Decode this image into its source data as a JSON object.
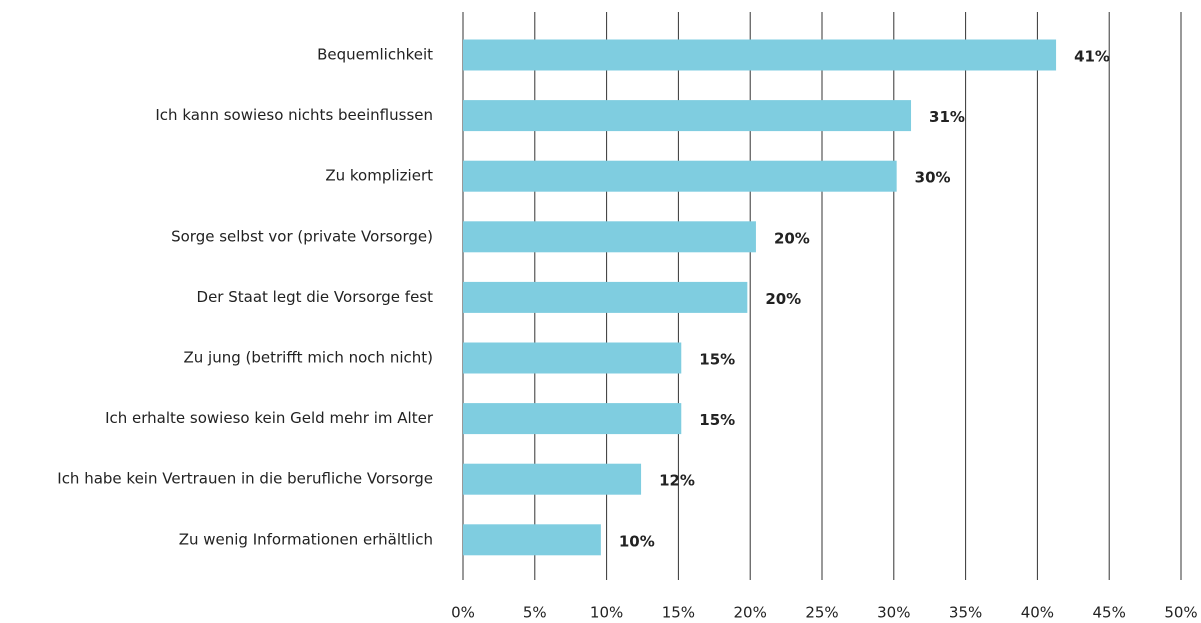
{
  "chart_data": {
    "type": "bar",
    "orientation": "horizontal",
    "categories": [
      "Bequemlichkeit",
      "Ich kann sowieso nichts beeinflussen",
      "Zu kompliziert",
      "Sorge selbst vor (private Vorsorge)",
      "Der Staat legt die Vorsorge fest",
      "Zu jung (betrifft mich noch nicht)",
      "Ich erhalte sowieso kein Geld mehr im Alter",
      "Ich habe kein Vertrauen in die berufliche Vorsorge",
      "Zu wenig Informationen erhältlich"
    ],
    "values": [
      41.3,
      31.2,
      30.2,
      20.4,
      19.8,
      15.2,
      15.2,
      12.4,
      9.6
    ],
    "value_labels": [
      "41%",
      "31%",
      "30%",
      "20%",
      "20%",
      "15%",
      "15%",
      "12%",
      "10%"
    ],
    "color": "#7fcde0",
    "xlim": [
      0,
      50
    ],
    "xticks": [
      {
        "value": 0,
        "label": "0%"
      },
      {
        "value": 5,
        "label": "5%"
      },
      {
        "value": 10,
        "label": "10%"
      },
      {
        "value": 15,
        "label": "15%"
      },
      {
        "value": 20,
        "label": "20%"
      },
      {
        "value": 25,
        "label": "25%"
      },
      {
        "value": 30,
        "label": "30%"
      },
      {
        "value": 35,
        "label": "35%"
      },
      {
        "value": 40,
        "label": "40%"
      },
      {
        "value": 45,
        "label": "45%"
      },
      {
        "value": 50,
        "label": "50%"
      }
    ],
    "grid": true
  }
}
